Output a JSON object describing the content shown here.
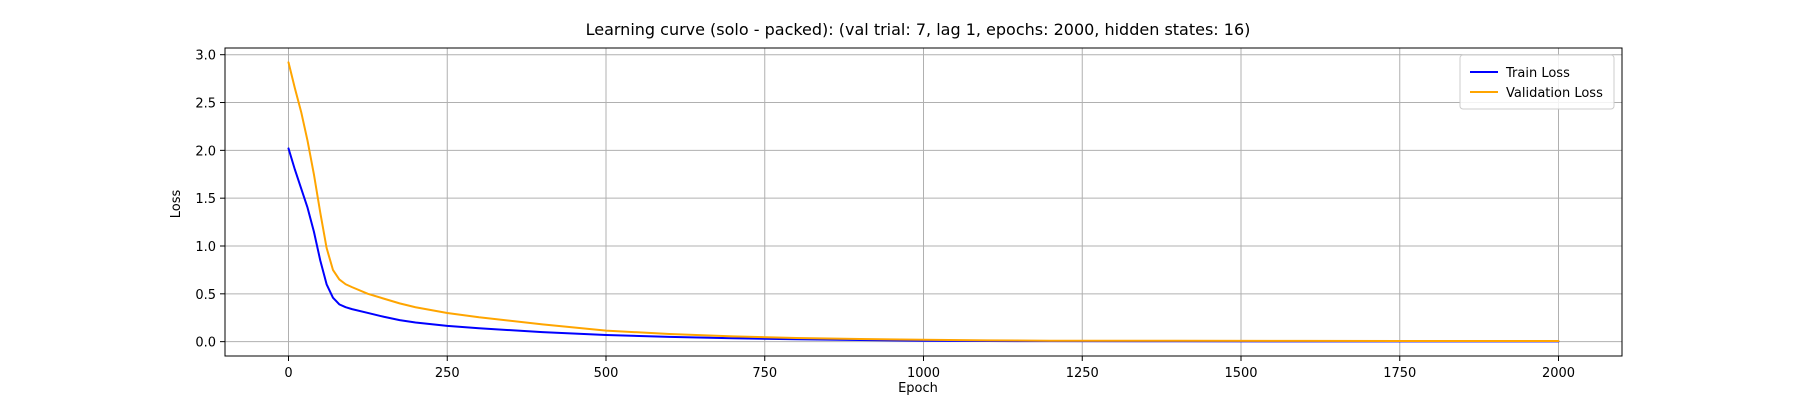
{
  "chart_data": {
    "type": "line",
    "title": "Learning curve (solo - packed): (val trial: 7, lag 1, epochs: 2000, hidden states: 16)",
    "xlabel": "Epoch",
    "ylabel": "Loss",
    "xlim": [
      -100,
      2100
    ],
    "ylim": [
      -0.15,
      3.07
    ],
    "xticks": [
      0,
      250,
      500,
      750,
      1000,
      1250,
      1500,
      1750,
      2000
    ],
    "yticks": [
      0.0,
      0.5,
      1.0,
      1.5,
      2.0,
      2.5,
      3.0
    ],
    "xtick_labels": [
      "0",
      "250",
      "500",
      "750",
      "1000",
      "1250",
      "1500",
      "1750",
      "2000"
    ],
    "ytick_labels": [
      "0.0",
      "0.5",
      "1.0",
      "1.5",
      "2.0",
      "2.5",
      "3.0"
    ],
    "grid": true,
    "legend_position": "top-right",
    "series": [
      {
        "name": "Train Loss",
        "color": "#0000ff",
        "x": [
          0,
          10,
          20,
          30,
          40,
          50,
          60,
          70,
          80,
          90,
          100,
          125,
          150,
          175,
          200,
          250,
          300,
          400,
          500,
          600,
          700,
          800,
          900,
          1000,
          1100,
          1200,
          1400,
          1600,
          1800,
          2000
        ],
        "y": [
          2.02,
          1.8,
          1.6,
          1.4,
          1.15,
          0.85,
          0.6,
          0.46,
          0.39,
          0.36,
          0.34,
          0.3,
          0.26,
          0.225,
          0.2,
          0.165,
          0.14,
          0.1,
          0.07,
          0.05,
          0.035,
          0.025,
          0.017,
          0.01,
          0.007,
          0.005,
          0.004,
          0.003,
          0.003,
          0.003
        ]
      },
      {
        "name": "Validation Loss",
        "color": "#ffa500",
        "x": [
          0,
          10,
          20,
          30,
          40,
          50,
          60,
          70,
          80,
          90,
          100,
          125,
          150,
          175,
          200,
          250,
          300,
          400,
          500,
          600,
          700,
          800,
          900,
          1000,
          1100,
          1200,
          1400,
          1600,
          1800,
          2000
        ],
        "y": [
          2.92,
          2.65,
          2.4,
          2.1,
          1.75,
          1.35,
          0.98,
          0.75,
          0.65,
          0.6,
          0.57,
          0.5,
          0.45,
          0.4,
          0.36,
          0.3,
          0.255,
          0.18,
          0.115,
          0.08,
          0.055,
          0.038,
          0.028,
          0.02,
          0.013,
          0.01,
          0.009,
          0.008,
          0.007,
          0.007
        ]
      }
    ]
  }
}
